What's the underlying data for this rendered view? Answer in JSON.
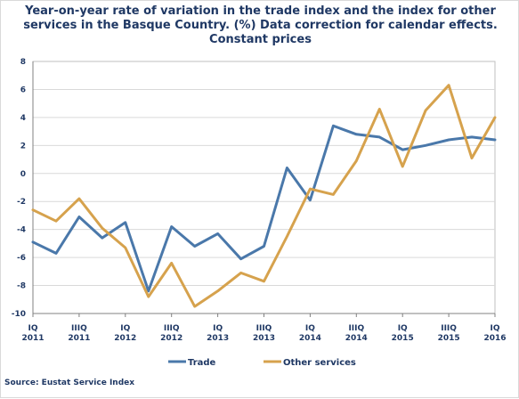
{
  "chart_data": {
    "type": "line",
    "title": "Year-on-year rate of variation in the trade index and the index for other services in the Basque Country. (%) Data correction for calendar effects. Constant prices",
    "ylim": [
      -10,
      8
    ],
    "yticks": [
      -10,
      -8,
      -6,
      -4,
      -2,
      0,
      2,
      4,
      6,
      8
    ],
    "grid": true,
    "legend": "bottom",
    "x_labels": [
      {
        "index": 0,
        "line1": "IQ",
        "line2": "2011"
      },
      {
        "index": 2,
        "line1": "IIIQ",
        "line2": "2011"
      },
      {
        "index": 4,
        "line1": "IQ",
        "line2": "2012"
      },
      {
        "index": 6,
        "line1": "IIIQ",
        "line2": "2012"
      },
      {
        "index": 8,
        "line1": "IQ",
        "line2": "2013"
      },
      {
        "index": 10,
        "line1": "IIIQ",
        "line2": "2013"
      },
      {
        "index": 12,
        "line1": "IQ",
        "line2": "2014"
      },
      {
        "index": 14,
        "line1": "IIIQ",
        "line2": "2014"
      },
      {
        "index": 16,
        "line1": "IQ",
        "line2": "2015"
      },
      {
        "index": 18,
        "line1": "IIIQ",
        "line2": "2015"
      },
      {
        "index": 20,
        "line1": "IQ",
        "line2": "2016"
      }
    ],
    "series": [
      {
        "name": "Trade",
        "color": "#4a78aa",
        "values": [
          -4.9,
          -5.7,
          -3.1,
          -4.6,
          -3.5,
          -8.4,
          -3.8,
          -5.2,
          -4.3,
          -6.1,
          -5.2,
          0.4,
          -1.9,
          3.4,
          2.8,
          2.6,
          1.7,
          2.0,
          2.4,
          2.6,
          2.4
        ]
      },
      {
        "name": "Other services",
        "color": "#d6a24d",
        "values": [
          -2.6,
          -3.4,
          -1.8,
          -3.9,
          -5.3,
          -8.8,
          -6.4,
          -9.5,
          -8.4,
          -7.1,
          -7.7,
          -4.5,
          -1.1,
          -1.5,
          0.9,
          4.6,
          0.5,
          4.5,
          6.3,
          1.1,
          4.0
        ]
      }
    ]
  },
  "source": "Source: Eustat Service Index"
}
